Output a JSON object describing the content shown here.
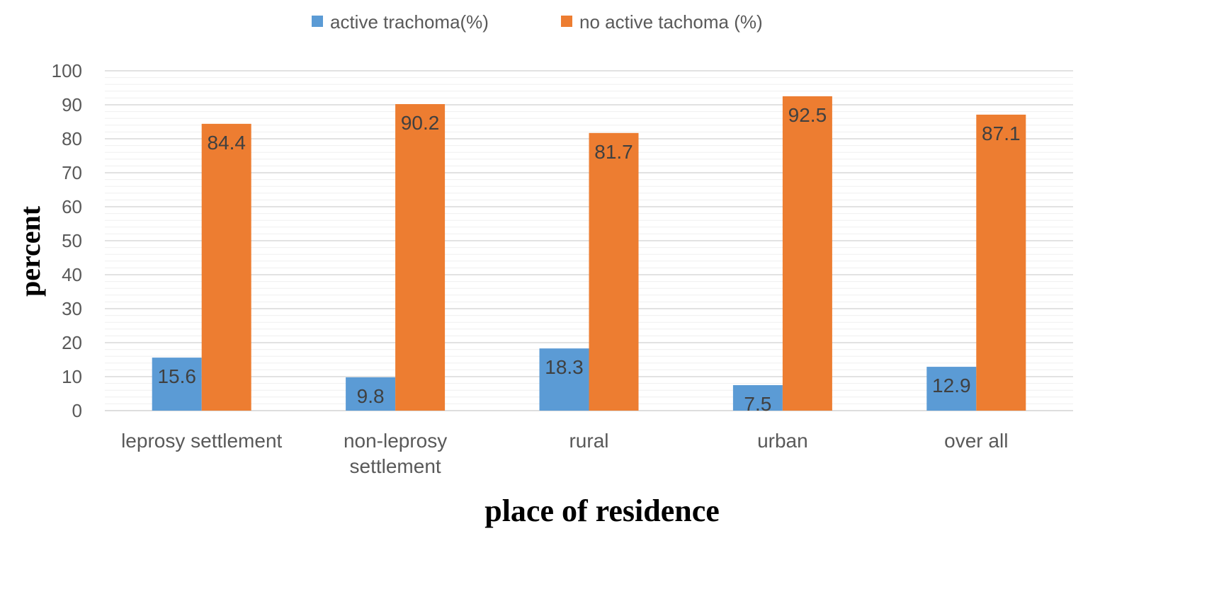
{
  "chart_data": {
    "type": "bar",
    "categories": [
      [
        "leprosy settlement"
      ],
      [
        "non-leprosy",
        "settlement"
      ],
      [
        "rural"
      ],
      [
        "urban"
      ],
      [
        "over all"
      ]
    ],
    "series": [
      {
        "name": "active trachoma(%)",
        "values": [
          15.6,
          9.8,
          18.3,
          7.5,
          12.9
        ],
        "color": "#5B9BD5"
      },
      {
        "name": "no active tachoma (%)",
        "values": [
          84.4,
          90.2,
          81.7,
          92.5,
          87.1
        ],
        "color": "#ED7D31"
      }
    ],
    "xlabel": "place of residence",
    "ylabel": "percent",
    "ylim": [
      0,
      100
    ],
    "yticks": [
      0,
      10,
      20,
      30,
      40,
      50,
      60,
      70,
      80,
      90,
      100
    ],
    "grid": true,
    "legend_position": "top-center",
    "data_labels": true
  }
}
